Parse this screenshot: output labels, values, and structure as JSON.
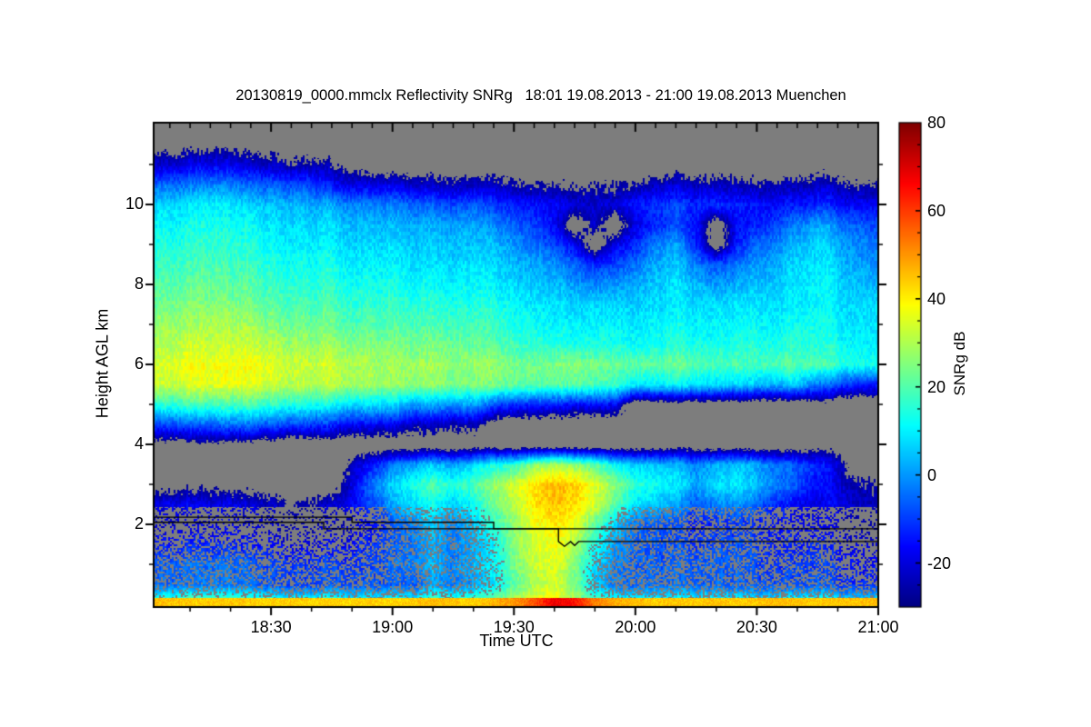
{
  "title": "20130819_0000.mmclx Reflectivity SNRg   18:01 19.08.2013 - 21:00 19.08.2013 Muenchen",
  "axes": {
    "x": {
      "label": "Time UTC",
      "start_min": 1,
      "end_min": 180,
      "major_ticks": [
        {
          "min": 30,
          "label": "18:30"
        },
        {
          "min": 60,
          "label": "19:00"
        },
        {
          "min": 90,
          "label": "19:30"
        },
        {
          "min": 120,
          "label": "20:00"
        },
        {
          "min": 150,
          "label": "20:30"
        },
        {
          "min": 180,
          "label": "21:00"
        }
      ],
      "minor_ticks_min": [
        10,
        20,
        40,
        50,
        70,
        80,
        100,
        110,
        130,
        140,
        160,
        170
      ],
      "top_minor_step_min": 5
    },
    "y": {
      "label": "Height AGL km",
      "min_km": 0,
      "max_km": 12.05,
      "major_ticks": [
        {
          "km": 2,
          "label": "2"
        },
        {
          "km": 4,
          "label": "4"
        },
        {
          "km": 6,
          "label": "6"
        },
        {
          "km": 8,
          "label": "8"
        },
        {
          "km": 10,
          "label": "10"
        }
      ],
      "minor_ticks_km": [
        1,
        3,
        5,
        7,
        9,
        11
      ]
    }
  },
  "colorbar": {
    "label": "SNRg dB",
    "vmin": -30,
    "vmax": 80,
    "major_ticks": [
      {
        "v": -20,
        "label": "-20"
      },
      {
        "v": 0,
        "label": "0"
      },
      {
        "v": 20,
        "label": "20"
      },
      {
        "v": 40,
        "label": "40"
      },
      {
        "v": 60,
        "label": "60"
      },
      {
        "v": 80,
        "label": "80"
      }
    ],
    "minor_step": 5
  },
  "chart_data": {
    "type": "heatmap",
    "title": "20130819_0000.mmclx Reflectivity SNRg",
    "time_span": {
      "start": "18:01 19.08.2013",
      "end": "21:00 19.08.2013",
      "site": "Muenchen"
    },
    "xlabel": "Time UTC",
    "ylabel": "Height AGL km",
    "units": "SNRg dB",
    "palette": "jet",
    "value_range": [
      -30,
      80
    ],
    "nodata_color": "#7d7d7d",
    "grid_x": {
      "start": "18:00",
      "step_min": 5,
      "columns": 37
    },
    "grid_y": {
      "start_km": 12.0,
      "step_km": -0.5,
      "rows": 25
    },
    "grid": [
      [
        null,
        null,
        null,
        null,
        null,
        null,
        null,
        null,
        null,
        null,
        null,
        null,
        null,
        null,
        null,
        null,
        null,
        null,
        null,
        null,
        null,
        null,
        null,
        null,
        null,
        null,
        null,
        null,
        null,
        null,
        null,
        null,
        null,
        null,
        null,
        null,
        null
      ],
      [
        null,
        null,
        null,
        null,
        null,
        null,
        null,
        null,
        null,
        null,
        null,
        null,
        null,
        null,
        null,
        null,
        null,
        null,
        null,
        null,
        null,
        null,
        null,
        null,
        null,
        null,
        null,
        null,
        null,
        null,
        null,
        null,
        null,
        null,
        null,
        null,
        null
      ],
      [
        -22,
        -22,
        -21,
        -20,
        -20,
        -22,
        -21,
        -22,
        -21,
        -25,
        -26,
        null,
        null,
        null,
        null,
        null,
        null,
        null,
        null,
        null,
        null,
        null,
        null,
        null,
        null,
        null,
        null,
        null,
        null,
        null,
        null,
        null,
        null,
        null,
        null,
        null,
        null
      ],
      [
        -6,
        -5,
        -6,
        -4,
        -5,
        -6,
        -5,
        -4,
        -6,
        -14,
        -15,
        -16,
        -15,
        -18,
        -20,
        -21,
        -20,
        -21,
        -22,
        -24,
        -25,
        -25,
        -24,
        -25,
        -22,
        -21,
        -20,
        -22,
        -20,
        -22,
        -22,
        -21,
        -22,
        -23,
        -23,
        -23,
        -24
      ],
      [
        6,
        7,
        6,
        8,
        7,
        6,
        7,
        8,
        6,
        3,
        2,
        2,
        1,
        -2,
        -4,
        -5,
        -4,
        -8,
        -10,
        -11,
        -12,
        -16,
        -18,
        -16,
        -10,
        -9,
        -8,
        -10,
        -9,
        -11,
        -12,
        -11,
        -12,
        -12,
        -13,
        -12,
        -13
      ],
      [
        10,
        11,
        10,
        11,
        10,
        11,
        10,
        11,
        10,
        9,
        8,
        8,
        7,
        6,
        5,
        5,
        4,
        0,
        -2,
        -6,
        -12,
        null,
        -18,
        null,
        -15,
        -10,
        -8,
        -12,
        null,
        -14,
        -10,
        -5,
        0,
        2,
        0,
        -2,
        -5
      ],
      [
        13,
        14,
        13,
        14,
        13,
        14,
        13,
        14,
        13,
        12,
        11,
        11,
        11,
        9,
        8,
        8,
        8,
        6,
        4,
        -1,
        -5,
        -12,
        null,
        -15,
        -8,
        0,
        2,
        -10,
        null,
        -12,
        -2,
        3,
        6,
        7,
        5,
        3,
        0
      ],
      [
        16,
        17,
        16,
        17,
        16,
        17,
        16,
        17,
        16,
        15,
        14,
        14,
        14,
        12,
        11,
        11,
        11,
        9,
        8,
        6,
        4,
        -2,
        -8,
        -5,
        0,
        5,
        6,
        0,
        -5,
        -2,
        4,
        7,
        9,
        9,
        8,
        6,
        4
      ],
      [
        19,
        20,
        19,
        20,
        19,
        20,
        19,
        20,
        19,
        18,
        17,
        17,
        17,
        15,
        14,
        14,
        14,
        12,
        11,
        9,
        8,
        5,
        2,
        4,
        6,
        8,
        9,
        6,
        3,
        5,
        8,
        10,
        11,
        11,
        10,
        9,
        7
      ],
      [
        23,
        23,
        23,
        23,
        23,
        23,
        23,
        23,
        23,
        21,
        20,
        20,
        20,
        19,
        18,
        18,
        17,
        16,
        15,
        13,
        12,
        11,
        11,
        11,
        10,
        10,
        10,
        10,
        10,
        11,
        12,
        12,
        12,
        11,
        11,
        11,
        11
      ],
      [
        27,
        27,
        26,
        27,
        27,
        28,
        27,
        27,
        27,
        25,
        24,
        24,
        24,
        23,
        22,
        22,
        21,
        19,
        18,
        16,
        15,
        14,
        14,
        14,
        13,
        13,
        13,
        13,
        13,
        14,
        15,
        15,
        15,
        13,
        13,
        13,
        13
      ],
      [
        30,
        30,
        31,
        30,
        31,
        32,
        32,
        32,
        31,
        30,
        30,
        29,
        28,
        27,
        27,
        26,
        25,
        23,
        22,
        20,
        19,
        18,
        18,
        18,
        16,
        16,
        16,
        16,
        16,
        17,
        18,
        18,
        18,
        15,
        15,
        15,
        14
      ],
      [
        34,
        34,
        35,
        35,
        36,
        37,
        37,
        37,
        36,
        35,
        34,
        33,
        32,
        32,
        31,
        30,
        30,
        29,
        28,
        27,
        29,
        30,
        28,
        26,
        26,
        24,
        24,
        23,
        22,
        22,
        22,
        24,
        23,
        20,
        19,
        18,
        18
      ],
      [
        32,
        32,
        33,
        33,
        34,
        35,
        35,
        35,
        34,
        33,
        33,
        32,
        31,
        30,
        29,
        28,
        27,
        26,
        26,
        25,
        24,
        25,
        23,
        21,
        14,
        12,
        12,
        11,
        10,
        9,
        8,
        8,
        8,
        -4,
        -6,
        -8,
        -10
      ],
      [
        15,
        15,
        16,
        16,
        17,
        18,
        18,
        18,
        17,
        13,
        12,
        12,
        11,
        5,
        4,
        4,
        4,
        -6,
        -8,
        -9,
        -10,
        -12,
        -12,
        -13,
        null,
        null,
        null,
        null,
        null,
        null,
        null,
        null,
        null,
        null,
        null,
        null,
        null
      ],
      [
        -10,
        -9,
        -10,
        -8,
        -7,
        -5,
        -5,
        -6,
        -6,
        -11,
        -12,
        -13,
        -14,
        -19,
        -20,
        -21,
        -22,
        null,
        null,
        null,
        null,
        null,
        null,
        null,
        null,
        null,
        null,
        null,
        null,
        null,
        null,
        null,
        null,
        null,
        null,
        null,
        null
      ],
      [
        null,
        null,
        null,
        null,
        null,
        null,
        null,
        null,
        null,
        null,
        null,
        null,
        null,
        null,
        null,
        null,
        null,
        null,
        null,
        null,
        null,
        null,
        null,
        null,
        null,
        null,
        null,
        null,
        null,
        null,
        null,
        null,
        null,
        null,
        null,
        null,
        null
      ],
      [
        null,
        null,
        null,
        null,
        null,
        null,
        null,
        null,
        null,
        null,
        -20,
        -10,
        0,
        5,
        8,
        5,
        10,
        15,
        20,
        30,
        35,
        30,
        25,
        15,
        10,
        8,
        5,
        0,
        5,
        8,
        5,
        0,
        -5,
        -12,
        -18,
        null,
        null
      ],
      [
        null,
        null,
        null,
        null,
        null,
        null,
        null,
        null,
        null,
        null,
        -15,
        0,
        10,
        18,
        22,
        18,
        22,
        30,
        38,
        45,
        50,
        48,
        40,
        30,
        20,
        15,
        10,
        5,
        10,
        12,
        8,
        2,
        -5,
        -15,
        -18,
        -20,
        -22
      ],
      [
        -20,
        -18,
        -20,
        -22,
        -20,
        -22,
        -20,
        -25,
        -22,
        -20,
        -12,
        -5,
        5,
        12,
        15,
        10,
        15,
        25,
        35,
        45,
        50,
        46,
        38,
        25,
        12,
        8,
        2,
        -5,
        0,
        2,
        -2,
        -8,
        -15,
        -20,
        -15,
        -18,
        -20
      ],
      [
        -22,
        -22,
        -22,
        -22,
        -22,
        -22,
        -22,
        -22,
        -22,
        -22,
        -18,
        -12,
        -5,
        2,
        8,
        2,
        8,
        18,
        30,
        40,
        45,
        40,
        25,
        10,
        0,
        -5,
        -8,
        -12,
        -10,
        -8,
        -10,
        -12,
        -15,
        -18,
        -20,
        -22,
        -22
      ],
      [
        -15,
        -15,
        -15,
        -15,
        -15,
        -15,
        -15,
        -15,
        -15,
        -15,
        -12,
        -8,
        -4,
        0,
        5,
        0,
        5,
        12,
        30,
        38,
        42,
        35,
        18,
        5,
        -2,
        -5,
        -8,
        -8,
        -6,
        -5,
        -8,
        -10,
        -12,
        -12,
        -15,
        -15,
        -18
      ],
      [
        -7,
        -7,
        -7,
        -7,
        -7,
        -7,
        -7,
        -7,
        -7,
        -7,
        -8,
        -5,
        -2,
        2,
        6,
        2,
        6,
        12,
        28,
        36,
        40,
        30,
        12,
        2,
        -2,
        -4,
        -5,
        -5,
        -4,
        -4,
        -6,
        -8,
        -8,
        -10,
        -10,
        -12,
        -12
      ],
      [
        -6,
        -6,
        -6,
        -6,
        -6,
        -6,
        -6,
        -6,
        -6,
        -6,
        -4,
        -4,
        -4,
        -4,
        4,
        0,
        4,
        10,
        25,
        34,
        38,
        28,
        10,
        0,
        -2,
        -3,
        -4,
        -4,
        -3,
        -4,
        -5,
        -5,
        -6,
        -6,
        -8,
        -8,
        -8
      ],
      [
        24,
        24,
        24,
        24,
        24,
        24,
        24,
        24,
        24,
        24,
        22,
        22,
        22,
        22,
        26,
        24,
        26,
        30,
        36,
        40,
        44,
        36,
        26,
        22,
        20,
        20,
        20,
        20,
        20,
        20,
        20,
        20,
        20,
        20,
        18,
        18,
        20
      ]
    ],
    "surface_clutter_band": {
      "top_km": 0.18,
      "values": [
        46,
        45,
        44,
        44,
        45,
        44,
        43,
        44,
        43,
        44,
        43,
        44,
        43,
        44,
        46,
        45,
        43,
        47,
        50,
        57,
        68,
        65,
        53,
        48,
        46,
        44,
        45,
        44,
        45,
        44,
        45,
        46,
        45,
        44,
        45,
        45,
        46
      ]
    },
    "overlay_lines": [
      {
        "name": "level-line-upper",
        "color": "#000000",
        "points_min_km": [
          [
            0,
            2.18
          ],
          [
            50,
            2.18
          ],
          [
            50,
            2.05
          ],
          [
            85,
            2.05
          ],
          [
            85,
            1.89
          ],
          [
            180,
            1.89
          ]
        ]
      },
      {
        "name": "level-line-lower",
        "color": "#000000",
        "points_min_km": [
          [
            0,
            2.05
          ],
          [
            43,
            2.05
          ],
          [
            43,
            1.89
          ],
          [
            101,
            1.89
          ],
          [
            101,
            1.57
          ],
          [
            102.5,
            1.45
          ],
          [
            104,
            1.57
          ],
          [
            105,
            1.47
          ],
          [
            106,
            1.57
          ],
          [
            180,
            1.57
          ]
        ]
      }
    ],
    "legend": "none",
    "grid_lines": "off"
  }
}
